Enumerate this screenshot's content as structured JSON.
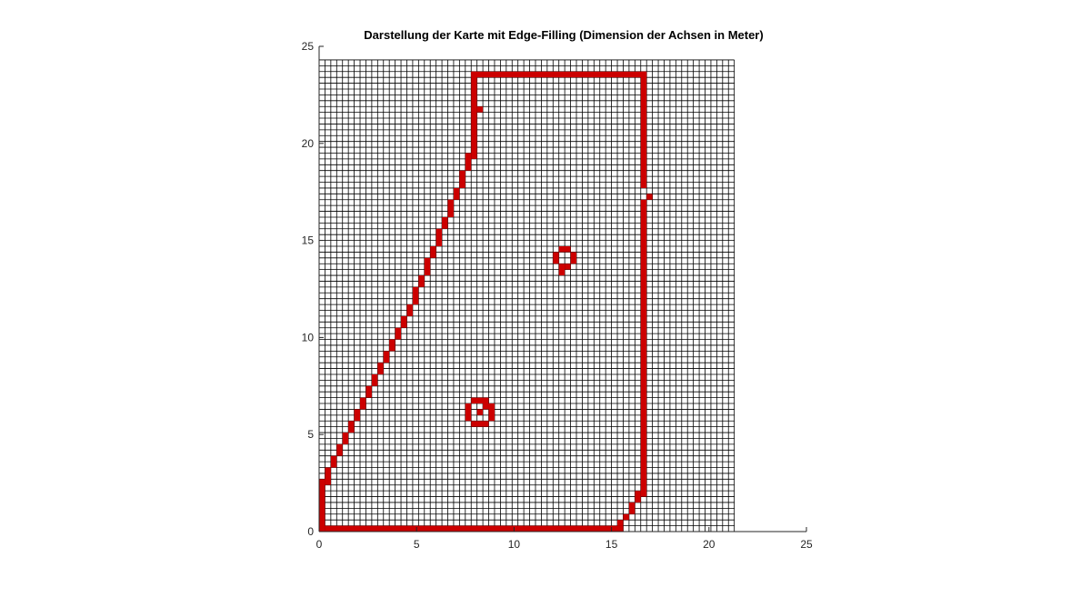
{
  "chart_data": {
    "type": "occupancy_grid",
    "title": "Darstellung der Karte mit Edge-Filling (Dimension der Achsen in Meter)",
    "xlim": [
      0,
      25
    ],
    "ylim": [
      0,
      25
    ],
    "xticks": [
      0,
      5,
      10,
      15,
      20,
      25
    ],
    "yticks": [
      0,
      5,
      10,
      15,
      20,
      25
    ],
    "cell_size": 0.3,
    "grid_xlim": [
      0,
      21.3
    ],
    "grid_ylim": [
      0,
      24.3
    ],
    "grid_color": "#000000",
    "color": "#cc0000",
    "occupied": [
      [
        0.3,
        15.6,
        0,
        0.3
      ],
      [
        0,
        0.3,
        0,
        2.7
      ],
      [
        0.3,
        0.6,
        2.4,
        3.3
      ],
      [
        0.6,
        0.9,
        3.3,
        3.9
      ],
      [
        0.9,
        1.2,
        3.9,
        4.5
      ],
      [
        1.2,
        1.5,
        4.5,
        5.1
      ],
      [
        1.5,
        1.8,
        5.1,
        5.7
      ],
      [
        1.8,
        2.1,
        5.7,
        6.3
      ],
      [
        2.1,
        2.4,
        6.3,
        6.9
      ],
      [
        2.4,
        2.7,
        6.9,
        7.5
      ],
      [
        2.7,
        3.0,
        7.5,
        8.1
      ],
      [
        3.0,
        3.3,
        8.1,
        8.7
      ],
      [
        3.3,
        3.6,
        8.7,
        9.3
      ],
      [
        3.6,
        3.9,
        9.3,
        9.9
      ],
      [
        3.9,
        4.2,
        9.9,
        10.5
      ],
      [
        4.2,
        4.5,
        10.5,
        11.1
      ],
      [
        4.5,
        4.8,
        11.1,
        11.7
      ],
      [
        4.8,
        5.1,
        11.7,
        12.6
      ],
      [
        5.1,
        5.4,
        12.6,
        13.2
      ],
      [
        5.4,
        5.7,
        13.2,
        14.1
      ],
      [
        5.7,
        6.0,
        14.1,
        14.7
      ],
      [
        6.0,
        6.3,
        14.7,
        15.6
      ],
      [
        6.3,
        6.6,
        15.6,
        16.2
      ],
      [
        6.6,
        6.9,
        16.2,
        17.1
      ],
      [
        6.9,
        7.2,
        17.1,
        17.7
      ],
      [
        7.2,
        7.5,
        17.7,
        18.6
      ],
      [
        7.5,
        7.8,
        18.6,
        19.5
      ],
      [
        7.8,
        8.1,
        19.2,
        23.7
      ],
      [
        8.1,
        8.4,
        21.6,
        21.9
      ],
      [
        7.8,
        16.8,
        23.4,
        23.7
      ],
      [
        16.5,
        16.8,
        17.7,
        23.7
      ],
      [
        16.5,
        16.8,
        1.8,
        17.1
      ],
      [
        16.8,
        17.1,
        17.1,
        17.4
      ],
      [
        16.2,
        16.5,
        1.5,
        2.1
      ],
      [
        15.9,
        16.2,
        0.9,
        1.5
      ],
      [
        15.6,
        15.9,
        0.6,
        0.9
      ],
      [
        15.3,
        15.6,
        0.3,
        0.6
      ],
      [
        12.3,
        12.9,
        14.4,
        14.7
      ],
      [
        12.0,
        12.3,
        13.8,
        14.4
      ],
      [
        12.9,
        13.2,
        13.8,
        14.4
      ],
      [
        12.6,
        12.9,
        13.5,
        13.8
      ],
      [
        12.3,
        12.6,
        13.2,
        13.8
      ],
      [
        7.8,
        8.7,
        6.6,
        6.9
      ],
      [
        7.8,
        8.7,
        5.4,
        5.7
      ],
      [
        7.5,
        7.8,
        5.7,
        6.6
      ],
      [
        8.7,
        9.0,
        5.7,
        6.6
      ],
      [
        8.1,
        8.4,
        6.0,
        6.3
      ],
      [
        8.4,
        8.7,
        6.3,
        6.6
      ]
    ]
  }
}
